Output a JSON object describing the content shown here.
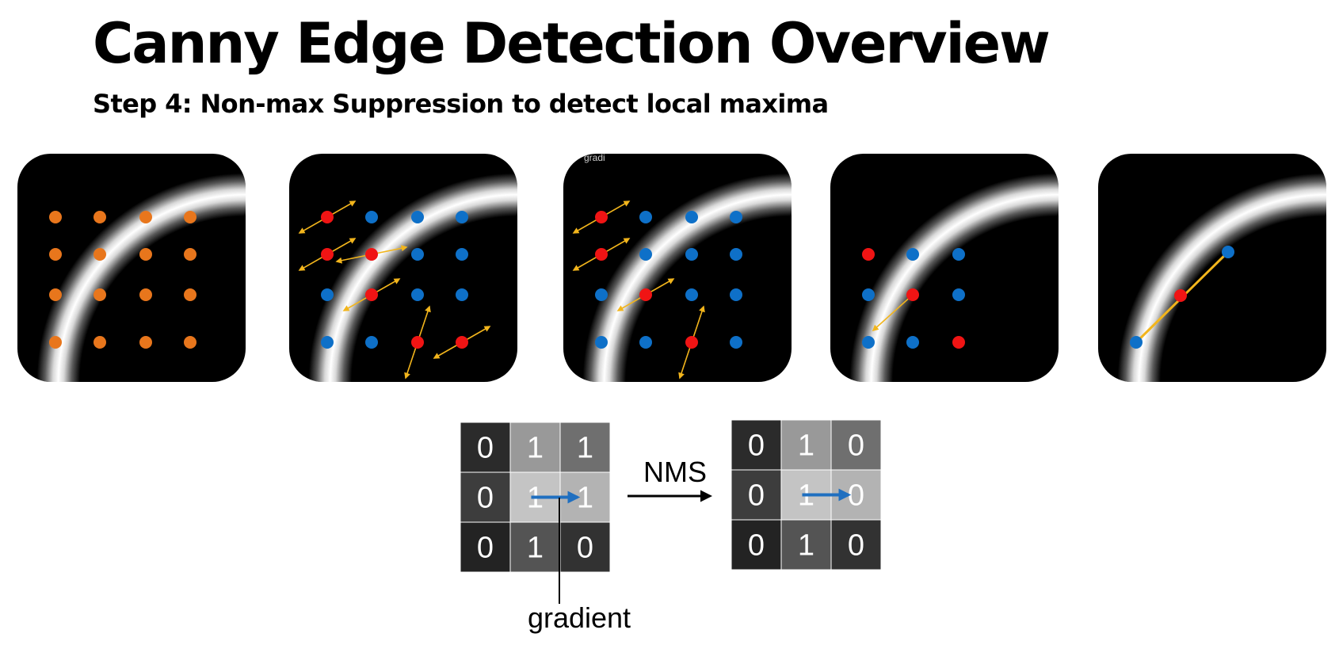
{
  "title": "Canny Edge Detection Overview",
  "subtitle": "Step 4: Non-max Suppression to detect local maxima",
  "colors": {
    "orange": "#E8761C",
    "red": "#F01414",
    "blue": "#0E70C8",
    "arrow": "#F2B51C",
    "panel_bg": "#000000"
  },
  "panels": [
    {
      "dots": [
        {
          "r": 0,
          "c": 0,
          "k": "orange"
        },
        {
          "r": 0,
          "c": 1,
          "k": "orange"
        },
        {
          "r": 0,
          "c": 2,
          "k": "orange"
        },
        {
          "r": 0,
          "c": 3,
          "k": "orange"
        },
        {
          "r": 1,
          "c": 0,
          "k": "orange"
        },
        {
          "r": 1,
          "c": 1,
          "k": "orange"
        },
        {
          "r": 1,
          "c": 2,
          "k": "orange"
        },
        {
          "r": 1,
          "c": 3,
          "k": "orange"
        },
        {
          "r": 2,
          "c": 0,
          "k": "orange"
        },
        {
          "r": 2,
          "c": 1,
          "k": "orange"
        },
        {
          "r": 2,
          "c": 2,
          "k": "orange"
        },
        {
          "r": 2,
          "c": 3,
          "k": "orange"
        },
        {
          "r": 3,
          "c": 0,
          "k": "orange"
        },
        {
          "r": 3,
          "c": 1,
          "k": "orange"
        },
        {
          "r": 3,
          "c": 2,
          "k": "orange"
        },
        {
          "r": 3,
          "c": 3,
          "k": "orange"
        }
      ],
      "arrows": [],
      "label": ""
    },
    {
      "dots": [
        {
          "r": 0,
          "c": 0,
          "k": "red"
        },
        {
          "r": 0,
          "c": 1,
          "k": "blue"
        },
        {
          "r": 0,
          "c": 2,
          "k": "blue"
        },
        {
          "r": 0,
          "c": 3,
          "k": "blue"
        },
        {
          "r": 1,
          "c": 0,
          "k": "red"
        },
        {
          "r": 1,
          "c": 1,
          "k": "red"
        },
        {
          "r": 1,
          "c": 2,
          "k": "blue"
        },
        {
          "r": 1,
          "c": 3,
          "k": "blue"
        },
        {
          "r": 2,
          "c": 0,
          "k": "blue"
        },
        {
          "r": 2,
          "c": 1,
          "k": "red"
        },
        {
          "r": 2,
          "c": 2,
          "k": "blue"
        },
        {
          "r": 2,
          "c": 3,
          "k": "blue"
        },
        {
          "r": 3,
          "c": 0,
          "k": "blue"
        },
        {
          "r": 3,
          "c": 1,
          "k": "blue"
        },
        {
          "r": 3,
          "c": 2,
          "k": "red"
        },
        {
          "r": 3,
          "c": 3,
          "k": "red"
        }
      ],
      "arrows": [
        {
          "r": 0,
          "c": 0,
          "dir": "diag",
          "double": true
        },
        {
          "r": 1,
          "c": 0,
          "dir": "diag",
          "double": true
        },
        {
          "r": 1,
          "c": 1,
          "dir": "horiz",
          "double": true
        },
        {
          "r": 2,
          "c": 1,
          "dir": "diag",
          "double": true
        },
        {
          "r": 3,
          "c": 2,
          "dir": "steep",
          "double": true
        },
        {
          "r": 3,
          "c": 3,
          "dir": "diag",
          "double": true
        }
      ],
      "label": ""
    },
    {
      "dots": [
        {
          "r": 0,
          "c": 0,
          "k": "red"
        },
        {
          "r": 0,
          "c": 1,
          "k": "blue"
        },
        {
          "r": 0,
          "c": 2,
          "k": "blue"
        },
        {
          "r": 0,
          "c": 3,
          "k": "blue"
        },
        {
          "r": 1,
          "c": 0,
          "k": "red"
        },
        {
          "r": 1,
          "c": 1,
          "k": "blue"
        },
        {
          "r": 1,
          "c": 2,
          "k": "blue"
        },
        {
          "r": 1,
          "c": 3,
          "k": "blue"
        },
        {
          "r": 2,
          "c": 0,
          "k": "blue"
        },
        {
          "r": 2,
          "c": 1,
          "k": "red"
        },
        {
          "r": 2,
          "c": 2,
          "k": "blue"
        },
        {
          "r": 2,
          "c": 3,
          "k": "blue"
        },
        {
          "r": 3,
          "c": 0,
          "k": "blue"
        },
        {
          "r": 3,
          "c": 1,
          "k": "blue"
        },
        {
          "r": 3,
          "c": 2,
          "k": "red"
        },
        {
          "r": 3,
          "c": 3,
          "k": "blue"
        }
      ],
      "arrows": [
        {
          "r": 0,
          "c": 0,
          "dir": "diag",
          "double": true
        },
        {
          "r": 1,
          "c": 0,
          "dir": "diag",
          "double": true
        },
        {
          "r": 2,
          "c": 1,
          "dir": "diag",
          "double": true
        },
        {
          "r": 3,
          "c": 2,
          "dir": "steep",
          "double": true
        }
      ],
      "label": "gradi"
    },
    {
      "dots": [
        {
          "r": 1,
          "c": 0,
          "k": "red"
        },
        {
          "r": 1,
          "c": 1,
          "k": "blue"
        },
        {
          "r": 1,
          "c": 2,
          "k": "blue"
        },
        {
          "r": 2,
          "c": 0,
          "k": "blue"
        },
        {
          "r": 2,
          "c": 1,
          "k": "red"
        },
        {
          "r": 2,
          "c": 2,
          "k": "blue"
        },
        {
          "r": 3,
          "c": 0,
          "k": "blue"
        },
        {
          "r": 3,
          "c": 1,
          "k": "blue"
        },
        {
          "r": 3,
          "c": 2,
          "k": "red"
        }
      ],
      "arrows": [
        {
          "r": 2,
          "c": 1,
          "dir": "down-left",
          "double": false
        }
      ],
      "label": ""
    },
    {
      "dots": [],
      "arrows": [],
      "label": ""
    }
  ],
  "nms": {
    "before": [
      [
        0,
        1,
        1
      ],
      [
        0,
        1,
        1
      ],
      [
        0,
        1,
        0
      ]
    ],
    "after": [
      [
        0,
        1,
        0
      ],
      [
        0,
        1,
        0
      ],
      [
        0,
        1,
        0
      ]
    ],
    "before_shades": [
      [
        "#2b2b2b",
        "#999999",
        "#6f6f6f"
      ],
      [
        "#3d3d3d",
        "#c4c4c4",
        "#b3b3b3"
      ],
      [
        "#232323",
        "#545454",
        "#323232"
      ]
    ],
    "after_shades": [
      [
        "#2b2b2b",
        "#999999",
        "#6f6f6f"
      ],
      [
        "#3d3d3d",
        "#c4c4c4",
        "#b3b3b3"
      ],
      [
        "#232323",
        "#545454",
        "#323232"
      ]
    ],
    "arrow_label": "NMS",
    "gradient_label": "gradient",
    "gradient_arrow_color": "#1F6FC0"
  }
}
